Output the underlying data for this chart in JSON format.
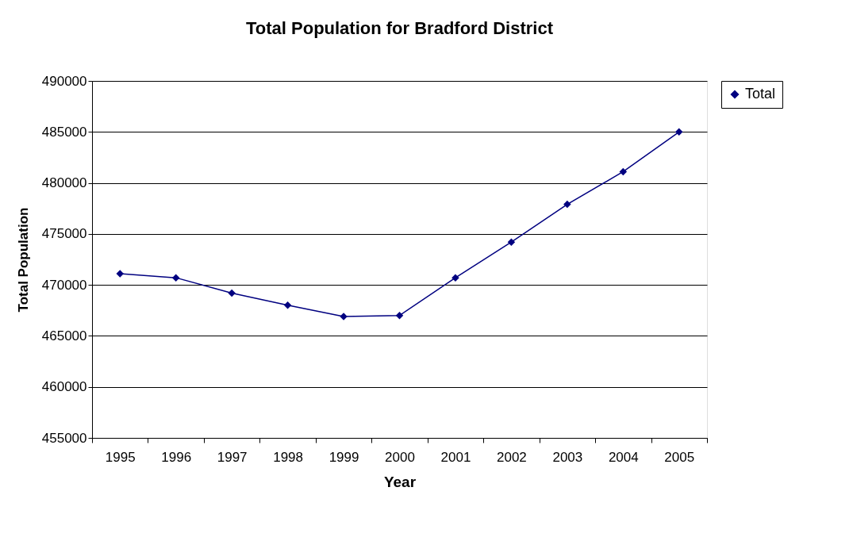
{
  "chart_data": {
    "type": "line",
    "title": "Total Population for Bradford District",
    "xlabel": "Year",
    "ylabel": "Total Population",
    "categories": [
      "1995",
      "1996",
      "1997",
      "1998",
      "1999",
      "2000",
      "2001",
      "2002",
      "2003",
      "2004",
      "2005"
    ],
    "series": [
      {
        "name": "Total",
        "color": "#000080",
        "values": [
          471100,
          470700,
          469200,
          468000,
          466900,
          467000,
          470700,
          474200,
          477900,
          481100,
          485000
        ]
      }
    ],
    "ylim": [
      455000,
      490000
    ],
    "yticks": [
      455000,
      460000,
      465000,
      470000,
      475000,
      480000,
      485000,
      490000
    ],
    "grid": "y",
    "legend": "right",
    "marker": "diamond",
    "line_style": "solid"
  }
}
